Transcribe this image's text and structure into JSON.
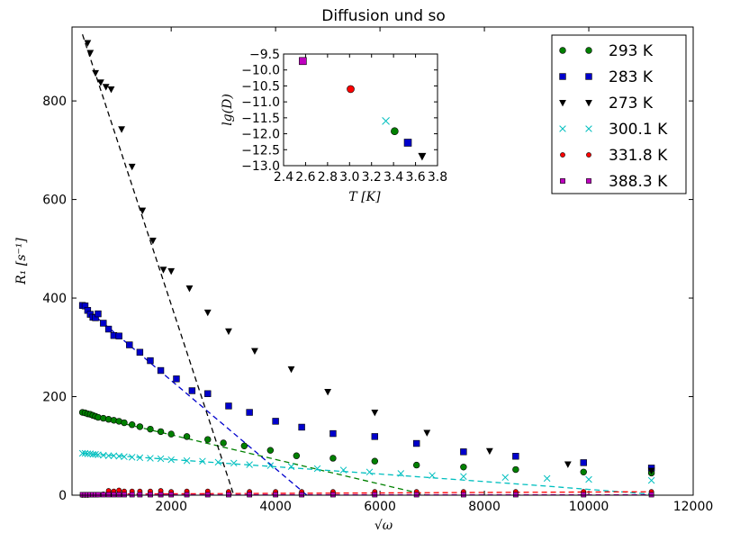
{
  "chart_data": [
    {
      "type": "scatter",
      "title": "Diffusion und so",
      "xlabel": "√ω",
      "ylabel": "R₁ [s⁻¹]",
      "xlim": [
        100,
        12000
      ],
      "ylim": [
        0,
        950
      ],
      "xticks": [
        2000,
        4000,
        6000,
        8000,
        10000,
        12000
      ],
      "yticks": [
        0,
        200,
        400,
        600,
        800
      ],
      "legend_position": "top-right",
      "series": [
        {
          "name": "293 K",
          "marker": "circle",
          "color": "#008000",
          "x": [
            300,
            350,
            400,
            450,
            500,
            550,
            600,
            700,
            800,
            900,
            1000,
            1100,
            1250,
            1400,
            1600,
            1800,
            2000,
            2300,
            2700,
            3000,
            3400,
            3900,
            4400,
            5100,
            5900,
            6700,
            7600,
            8600,
            9900,
            11200
          ],
          "y": [
            168,
            167,
            165,
            164,
            162,
            160,
            158,
            156,
            154,
            152,
            150,
            147,
            143,
            139,
            134,
            129,
            124,
            119,
            113,
            106,
            100,
            91,
            80,
            75,
            69,
            61,
            57,
            52,
            47,
            45
          ],
          "fit": {
            "color": "#008000",
            "x": [
              300,
              6900
            ],
            "y": [
              165,
              0
            ]
          }
        },
        {
          "name": "283 K",
          "marker": "square",
          "color": "#0000cc",
          "x": [
            300,
            350,
            400,
            450,
            500,
            550,
            600,
            700,
            800,
            900,
            1000,
            1200,
            1400,
            1600,
            1800,
            2100,
            2400,
            2700,
            3100,
            3500,
            4000,
            4500,
            5100,
            5900,
            6700,
            7600,
            8600,
            9900,
            11200
          ],
          "y": [
            385,
            384,
            375,
            367,
            361,
            360,
            368,
            349,
            337,
            324,
            323,
            305,
            290,
            273,
            253,
            236,
            212,
            206,
            181,
            168,
            150,
            138,
            125,
            119,
            105,
            88,
            79,
            66,
            55
          ],
          "fit": {
            "color": "#0000cc",
            "x": [
              300,
              4600
            ],
            "y": [
              385,
              0
            ]
          }
        },
        {
          "name": "273 K",
          "marker": "triangle-down",
          "color": "#000000",
          "x": [
            400,
            450,
            550,
            650,
            750,
            850,
            1050,
            1250,
            1450,
            1650,
            1850,
            2000,
            2350,
            2700,
            3100,
            3600,
            4300,
            5000,
            5900,
            6900,
            8100,
            9600,
            11200
          ],
          "y": [
            918,
            898,
            857,
            838,
            829,
            824,
            743,
            667,
            578,
            517,
            458,
            455,
            420,
            371,
            333,
            293,
            256,
            210,
            168,
            127,
            90,
            63,
            50
          ],
          "fit": {
            "color": "#000000",
            "x": [
              300,
              3200
            ],
            "y": [
              935,
              0
            ]
          }
        },
        {
          "name": "300.1 K",
          "marker": "x",
          "color": "#00bfbf",
          "x": [
            300,
            350,
            400,
            450,
            500,
            550,
            600,
            700,
            800,
            900,
            1000,
            1100,
            1250,
            1400,
            1600,
            1800,
            2000,
            2300,
            2600,
            2900,
            3200,
            3500,
            3900,
            4300,
            4800,
            5300,
            5800,
            6400,
            7000,
            7600,
            8400,
            9200,
            10000,
            11200
          ],
          "y": [
            85,
            85,
            84,
            84,
            83,
            83,
            82,
            81,
            80,
            80,
            79,
            78,
            77,
            76,
            75,
            74,
            72,
            70,
            69,
            67,
            65,
            62,
            60,
            58,
            54,
            51,
            47,
            44,
            40,
            38,
            36,
            34,
            32,
            30
          ],
          "fit": {
            "color": "#00bfbf",
            "x": [
              300,
              3000,
              6000,
              9000,
              11200
            ],
            "y": [
              85,
              65,
              43,
              20,
              2
            ]
          }
        },
        {
          "name": "331.8 K",
          "marker": "circle-small",
          "color": "#ff0000",
          "x": [
            300,
            350,
            400,
            450,
            500,
            550,
            600,
            700,
            800,
            900,
            1000,
            1100,
            1250,
            1400,
            1600,
            1800,
            2000,
            2300,
            2700,
            3100,
            3500,
            4000,
            4500,
            5100,
            5900,
            6700,
            7600,
            8600,
            9900,
            11200
          ],
          "y": [
            0,
            0,
            0,
            1,
            1,
            1,
            1,
            2,
            9,
            8,
            10,
            8,
            8,
            8,
            8,
            9,
            7,
            8,
            8,
            7,
            7,
            7,
            7,
            7,
            7,
            7,
            7,
            7,
            7,
            7
          ],
          "fit": {
            "color": "#ff0000",
            "x": [
              300,
              11200
            ],
            "y": [
              2,
              7
            ]
          }
        },
        {
          "name": "388.3 K",
          "marker": "square-small",
          "color": "#bf00bf",
          "x": [
            300,
            350,
            400,
            450,
            500,
            550,
            600,
            700,
            800,
            900,
            1000,
            1100,
            1250,
            1400,
            1600,
            1800,
            2000,
            2300,
            2700,
            3100,
            3500,
            4000,
            4500,
            5100,
            5900,
            6700,
            7600,
            8600,
            9900,
            11200
          ],
          "y": [
            1,
            1,
            1,
            1,
            1,
            1,
            1,
            1,
            1,
            1,
            1,
            1,
            1,
            1,
            1,
            1,
            1,
            1,
            1,
            1,
            1,
            1,
            1,
            1,
            1,
            1,
            1,
            1,
            1,
            1
          ],
          "fit": {
            "color": "#bf00bf",
            "x": [
              300,
              11200
            ],
            "y": [
              1,
              1
            ]
          }
        }
      ]
    },
    {
      "type": "scatter",
      "title": "",
      "xlabel": "T [K]",
      "ylabel": "lg(D)",
      "xlim": [
        2.4,
        3.8
      ],
      "ylim": [
        -13.0,
        -9.5
      ],
      "xticks": [
        2.4,
        2.6,
        2.8,
        3.0,
        3.2,
        3.4,
        3.6,
        3.8
      ],
      "yticks": [
        -9.5,
        -10.0,
        -10.5,
        -11.0,
        -11.5,
        -12.0,
        -12.5,
        -13.0
      ],
      "xtick_labels": [
        "2.4",
        "2.6",
        "2.8",
        "3.0",
        "3.2",
        "3.4",
        "3.6",
        "3.8"
      ],
      "ytick_labels": [
        "−9.5",
        "−10.0",
        "−10.5",
        "−11.0",
        "−11.5",
        "−12.0",
        "−12.5",
        "−13.0"
      ],
      "points": [
        {
          "x": 2.575,
          "y": -9.72,
          "marker": "square",
          "color": "#bf00bf"
        },
        {
          "x": 3.01,
          "y": -10.6,
          "marker": "circle",
          "color": "#ff0000"
        },
        {
          "x": 3.33,
          "y": -11.6,
          "marker": "x",
          "color": "#00bfbf"
        },
        {
          "x": 3.41,
          "y": -11.92,
          "marker": "circle",
          "color": "#008000"
        },
        {
          "x": 3.53,
          "y": -12.28,
          "marker": "square",
          "color": "#0000cc"
        },
        {
          "x": 3.66,
          "y": -12.7,
          "marker": "triangle-down",
          "color": "#000000"
        }
      ]
    }
  ],
  "main_xtick_labels": [
    "2000",
    "4000",
    "6000",
    "8000",
    "10000",
    "12000"
  ],
  "main_ytick_labels": [
    "0",
    "200",
    "400",
    "600",
    "800"
  ]
}
